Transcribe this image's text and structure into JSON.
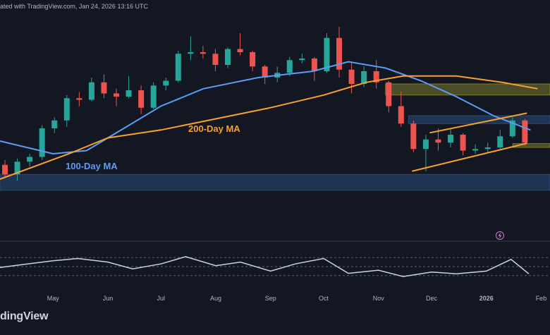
{
  "header": {
    "published_text": "ated with TradingView.com, Jan 24, 2026 13:16 UTC"
  },
  "footer": {
    "logo_text": "dingView"
  },
  "colors": {
    "background": "#131722",
    "candle_up": "#26a69a",
    "candle_down": "#ef5350",
    "ma100": "#5b9cf6",
    "ma200": "#f5a033",
    "channel": "#f5a033",
    "zone_blue": "#2a4a7a",
    "zone_yellow": "#7a7a2a",
    "rsi": "#c7d2ea",
    "axis_text": "#b2b5be"
  },
  "icons": {
    "lightning": "lightning-icon"
  },
  "chart_data": [
    {
      "type": "candlestick",
      "title": "",
      "x_axis": {
        "type": "date",
        "tick_labels": [
          "May",
          "Jun",
          "Jul",
          "Aug",
          "Sep",
          "Oct",
          "Nov",
          "Dec",
          "2026",
          "Feb"
        ],
        "tick_dates": [
          "2025-05-01",
          "2025-06-01",
          "2025-07-01",
          "2025-08-01",
          "2025-09-01",
          "2025-10-01",
          "2025-11-01",
          "2025-12-01",
          "2026-01-01",
          "2026-02-01"
        ],
        "range": [
          "2025-04-01",
          "2026-02-06"
        ]
      },
      "y_axis": {
        "scale": "linear",
        "tick_labels": [],
        "range": [
          60000,
          130000
        ]
      },
      "grid": false,
      "legend": "none",
      "series": [
        {
          "name": "100-Day MA",
          "type": "line",
          "points": [
            [
              "2025-04-01",
              90000
            ],
            [
              "2025-05-01",
              86000
            ],
            [
              "2025-05-20",
              87000
            ],
            [
              "2025-06-10",
              94000
            ],
            [
              "2025-07-01",
              101000
            ],
            [
              "2025-07-25",
              106500
            ],
            [
              "2025-08-25",
              110000
            ],
            [
              "2025-09-25",
              112000
            ],
            [
              "2025-10-15",
              115000
            ],
            [
              "2025-11-05",
              113000
            ],
            [
              "2025-11-25",
              109000
            ],
            [
              "2025-12-15",
              104000
            ],
            [
              "2026-01-05",
              98000
            ],
            [
              "2026-01-26",
              93500
            ]
          ]
        },
        {
          "name": "200-Day MA",
          "type": "line",
          "points": [
            [
              "2025-04-01",
              78000
            ],
            [
              "2025-05-10",
              86000
            ],
            [
              "2025-06-01",
              91000
            ],
            [
              "2025-07-01",
              93500
            ],
            [
              "2025-08-01",
              97000
            ],
            [
              "2025-09-01",
              100500
            ],
            [
              "2025-10-01",
              104500
            ],
            [
              "2025-10-25",
              108500
            ],
            [
              "2025-11-15",
              110500
            ],
            [
              "2025-12-15",
              110500
            ],
            [
              "2026-01-10",
              108500
            ],
            [
              "2026-01-30",
              106500
            ]
          ]
        }
      ],
      "candles": [
        [
          "2025-04-01",
          82500,
          84000,
          78500,
          79500
        ],
        [
          "2025-04-08",
          79500,
          84500,
          77500,
          83500
        ],
        [
          "2025-04-15",
          83500,
          86000,
          82000,
          85000
        ],
        [
          "2025-04-22",
          85000,
          95000,
          84000,
          94000
        ],
        [
          "2025-04-29",
          94000,
          97500,
          92500,
          96500
        ],
        [
          "2025-05-06",
          96500,
          104500,
          94500,
          103500
        ],
        [
          "2025-05-13",
          103500,
          105500,
          101000,
          103000
        ],
        [
          "2025-05-20",
          103000,
          110000,
          102500,
          108500
        ],
        [
          "2025-05-27",
          108500,
          111000,
          103500,
          105000
        ],
        [
          "2025-06-03",
          105000,
          106500,
          101000,
          104000
        ],
        [
          "2025-06-10",
          104000,
          110500,
          103500,
          106000
        ],
        [
          "2025-06-17",
          106000,
          107500,
          98500,
          100500
        ],
        [
          "2025-06-24",
          100500,
          108500,
          100000,
          107500
        ],
        [
          "2025-07-01",
          107500,
          110000,
          106000,
          109000
        ],
        [
          "2025-07-08",
          109000,
          118500,
          108500,
          117500
        ],
        [
          "2025-07-15",
          117500,
          123000,
          115500,
          118000
        ],
        [
          "2025-07-22",
          118000,
          120000,
          116000,
          117500
        ],
        [
          "2025-07-29",
          117500,
          119000,
          112000,
          114000
        ],
        [
          "2025-08-05",
          114000,
          119500,
          113000,
          119000
        ],
        [
          "2025-08-12",
          119000,
          124000,
          117000,
          118000
        ],
        [
          "2025-08-19",
          118000,
          118500,
          112000,
          113500
        ],
        [
          "2025-08-26",
          113500,
          114000,
          108000,
          110000
        ],
        [
          "2025-09-02",
          110000,
          113500,
          108500,
          111500
        ],
        [
          "2025-09-09",
          111500,
          116500,
          110500,
          115500
        ],
        [
          "2025-09-16",
          115500,
          117500,
          114500,
          116000
        ],
        [
          "2025-09-23",
          116000,
          116500,
          109000,
          112000
        ],
        [
          "2025-09-30",
          112000,
          124000,
          111500,
          122500
        ],
        [
          "2025-10-07",
          122500,
          126000,
          110000,
          112500
        ],
        [
          "2025-10-14",
          112500,
          115000,
          105000,
          108000
        ],
        [
          "2025-10-21",
          108000,
          113500,
          107000,
          112000
        ],
        [
          "2025-10-28",
          112000,
          115500,
          106500,
          108500
        ],
        [
          "2025-11-04",
          108500,
          109000,
          99000,
          101000
        ],
        [
          "2025-11-11",
          101000,
          105500,
          94500,
          95500
        ],
        [
          "2025-11-18",
          95500,
          96500,
          86500,
          87500
        ],
        [
          "2025-11-25",
          87500,
          92000,
          80500,
          90500
        ],
        [
          "2025-12-02",
          90500,
          94000,
          87000,
          89500
        ],
        [
          "2025-12-09",
          89500,
          94000,
          88000,
          92000
        ],
        [
          "2025-12-16",
          92000,
          92500,
          85500,
          87000
        ],
        [
          "2025-12-23",
          87000,
          89000,
          86000,
          87500
        ],
        [
          "2025-12-30",
          87500,
          89500,
          86500,
          88000
        ],
        [
          "2026-01-06",
          88000,
          93500,
          87500,
          91500
        ],
        [
          "2026-01-13",
          91500,
          97500,
          91000,
          96500
        ],
        [
          "2026-01-20",
          96500,
          97000,
          88500,
          89500
        ]
      ],
      "annotations": [
        {
          "text": "100-Day MA",
          "color": "#5b9cf6"
        },
        {
          "text": "200-Day MA",
          "color": "#f5a033"
        }
      ],
      "zones": [
        {
          "color": "#2a4a7a",
          "from": 74500,
          "to": 79500,
          "start": "2025-04-01"
        },
        {
          "color": "#2a4a7a",
          "from": 95500,
          "to": 98000,
          "start": "2025-11-18"
        },
        {
          "color": "#7a7a2a",
          "from": 104500,
          "to": 108000,
          "start": "2025-11-05"
        },
        {
          "color": "#7a7a2a",
          "from": 88000,
          "to": 89200,
          "start": "2026-01-16"
        }
      ],
      "trendlines": [
        {
          "color": "#f5a033",
          "from": [
            "2025-11-20",
            80500
          ],
          "to": [
            "2026-01-24",
            89300
          ]
        },
        {
          "color": "#f5a033",
          "from": [
            "2025-11-30",
            92600
          ],
          "to": [
            "2026-01-24",
            98800
          ]
        }
      ]
    },
    {
      "type": "line",
      "title": "",
      "name": "RSI",
      "x_axis": {
        "range": [
          "2025-04-01",
          "2026-02-06"
        ]
      },
      "y_axis": {
        "range": [
          0,
          100
        ],
        "guide_levels": [
          70,
          50,
          30
        ]
      },
      "series": [
        {
          "name": "",
          "values": [
            [
              "2025-04-01",
              48
            ],
            [
              "2025-04-15",
              55
            ],
            [
              "2025-05-01",
              63
            ],
            [
              "2025-05-15",
              68
            ],
            [
              "2025-06-01",
              60
            ],
            [
              "2025-06-15",
              45
            ],
            [
              "2025-07-01",
              56
            ],
            [
              "2025-07-15",
              72
            ],
            [
              "2025-08-01",
              52
            ],
            [
              "2025-08-15",
              60
            ],
            [
              "2025-09-01",
              40
            ],
            [
              "2025-09-15",
              56
            ],
            [
              "2025-10-01",
              68
            ],
            [
              "2025-10-15",
              35
            ],
            [
              "2025-11-01",
              42
            ],
            [
              "2025-11-15",
              28
            ],
            [
              "2025-12-01",
              38
            ],
            [
              "2025-12-15",
              34
            ],
            [
              "2026-01-01",
              40
            ],
            [
              "2026-01-15",
              66
            ],
            [
              "2026-01-25",
              34
            ]
          ]
        }
      ]
    }
  ]
}
